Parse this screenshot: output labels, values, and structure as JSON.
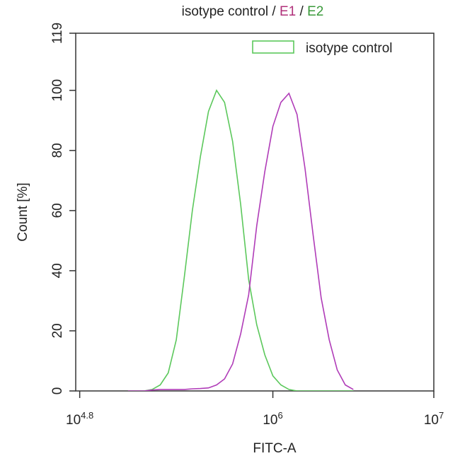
{
  "chart_data": {
    "type": "line",
    "title_parts": [
      {
        "text": "isotype control",
        "color": "#222222"
      },
      {
        "text": " / ",
        "color": "#222222"
      },
      {
        "text": "E1",
        "color": "#b0307a"
      },
      {
        "text": " / ",
        "color": "#222222"
      },
      {
        "text": "E2",
        "color": "#3a9a3a"
      }
    ],
    "x_label": "FITC-A",
    "y_label": "Count [%]",
    "xscale": "log",
    "xlim": [
      59600,
      10000000
    ],
    "xticks": [
      {
        "value": 63096,
        "label": "10",
        "superscript": "4.8"
      },
      {
        "value": 1000000,
        "label": "10",
        "superscript": "6"
      },
      {
        "value": 10000000,
        "label": "10",
        "superscript": "7"
      }
    ],
    "ylim": [
      0,
      119
    ],
    "yticks": [
      0,
      20,
      40,
      60,
      80,
      100,
      119
    ],
    "legend": "upper right",
    "x": [
      125893,
      141254,
      158489,
      177828,
      199526,
      223872,
      251189,
      281838,
      316228,
      354813,
      398107,
      446684,
      501187,
      562341,
      630957,
      707946,
      794328,
      891251,
      1000000,
      1122018,
      1258925,
      1412538,
      1584893,
      1778279,
      1995262,
      2238721,
      2511886,
      2818383,
      3162278
    ],
    "series": [
      {
        "name": "isotype control",
        "color": "#5cc85c",
        "values": [
          0,
          0,
          0,
          0.5,
          2,
          6,
          17,
          38,
          60,
          78,
          93,
          100,
          96,
          83,
          62,
          37,
          22,
          12,
          5,
          2,
          0.5,
          0,
          0,
          0,
          0,
          0,
          0,
          0,
          0
        ]
      },
      {
        "color": "#b03cb8",
        "values": [
          0,
          0,
          0,
          0.3,
          0.5,
          0.5,
          0.5,
          0.5,
          0.7,
          0.8,
          1,
          2,
          4,
          9,
          19,
          32,
          55,
          73,
          88,
          96,
          99,
          92,
          74,
          52,
          31,
          17,
          7,
          2,
          0.5
        ]
      }
    ]
  }
}
